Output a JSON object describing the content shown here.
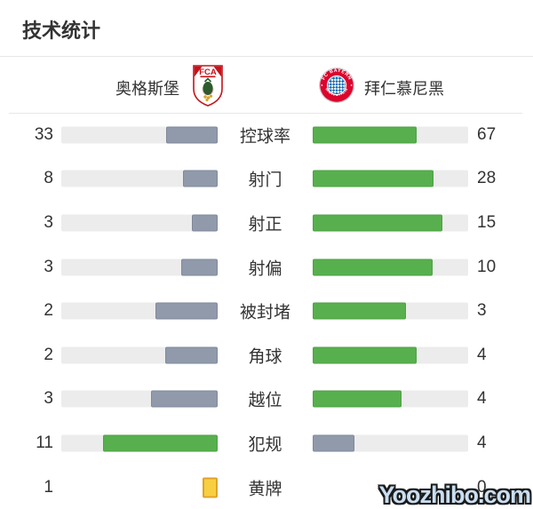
{
  "header": {
    "title": "技术统计"
  },
  "teams": {
    "home": {
      "name": "奥格斯堡"
    },
    "away": {
      "name": "拜仁慕尼黑"
    }
  },
  "crests": {
    "home": {
      "label": "FCA"
    },
    "away": {
      "top": "FC BAYERN",
      "bottom": "MÜNCHEN"
    }
  },
  "stats": [
    {
      "label": "控球率",
      "home": 33,
      "away": 67
    },
    {
      "label": "射门",
      "home": 8,
      "away": 28
    },
    {
      "label": "射正",
      "home": 3,
      "away": 15
    },
    {
      "label": "射偏",
      "home": 3,
      "away": 10
    },
    {
      "label": "被封堵",
      "home": 2,
      "away": 3
    },
    {
      "label": "角球",
      "home": 2,
      "away": 4
    },
    {
      "label": "越位",
      "home": 3,
      "away": 4
    },
    {
      "label": "犯规",
      "home": 11,
      "away": 4
    },
    {
      "label": "黄牌",
      "home": 1,
      "away": 0,
      "display": "cards"
    }
  ],
  "chart_data": {
    "type": "bar",
    "orientation": "horizontal-paired-comparison",
    "title": "技术统计",
    "categories": [
      "控球率",
      "射门",
      "射正",
      "射偏",
      "被封堵",
      "角球",
      "越位",
      "犯规",
      "黄牌"
    ],
    "series": [
      {
        "name": "奥格斯堡",
        "values": [
          33,
          8,
          3,
          3,
          2,
          2,
          3,
          11,
          1
        ]
      },
      {
        "name": "拜仁慕尼黑",
        "values": [
          67,
          28,
          15,
          10,
          3,
          4,
          4,
          4,
          0
        ]
      }
    ],
    "legend_position": "top",
    "notes": "Each bar fill width = value/(home+away). Higher value of the pair is green, lower is gray-blue. 黄牌 row shows yellow-card icons instead of bars."
  },
  "colors": {
    "green": "#57b04d",
    "green_border": "#4ca144",
    "gray_blue": "#909aab",
    "gray_blue_border": "#7e899b",
    "track": "#ececec",
    "yellow_card": "#f8cf40",
    "yellow_card_border": "#dfa32b",
    "text": "#333333",
    "divider": "#e7e7e7",
    "crest_red": "#c6131b",
    "bayern_red": "#dc052d",
    "bayern_blue": "#0f6bb2"
  },
  "watermark": "Yoozhibo.com"
}
